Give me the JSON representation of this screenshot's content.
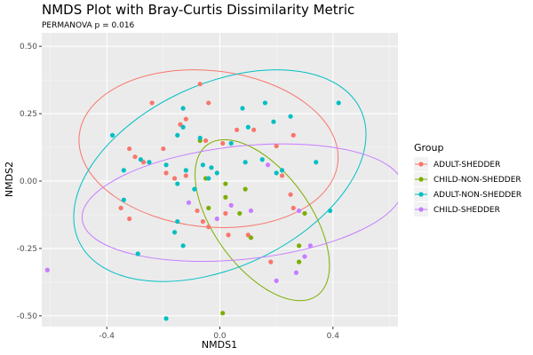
{
  "chart_data": {
    "type": "scatter",
    "title": "NMDS Plot with Bray-Curtis Dissimilarity Metric",
    "subtitle": "PERMANOVA p = 0.016",
    "xlabel": "NMDS1",
    "ylabel": "NMDS2",
    "xlim": [
      -0.63,
      0.63
    ],
    "ylim": [
      -0.54,
      0.55
    ],
    "x_ticks": [
      -0.4,
      0.0,
      0.4
    ],
    "x_tick_labels": [
      "-0.4",
      "0.0",
      "0.4"
    ],
    "y_ticks": [
      -0.5,
      -0.25,
      0.0,
      0.25,
      0.5
    ],
    "y_tick_labels": [
      "-0.50",
      "-0.25",
      "0.00",
      "0.25",
      "0.50"
    ],
    "legend_title": "Group",
    "legend_position": "right",
    "series": [
      {
        "name": "ADULT-SHEDDER",
        "color": "#F8766D",
        "points": [
          [
            -0.24,
            0.29
          ],
          [
            -0.07,
            0.36
          ],
          [
            -0.04,
            0.29
          ],
          [
            -0.12,
            0.23
          ],
          [
            -0.14,
            0.21
          ],
          [
            -0.32,
            0.12
          ],
          [
            -0.3,
            0.09
          ],
          [
            -0.27,
            0.07
          ],
          [
            -0.2,
            0.12
          ],
          [
            -0.19,
            0.03
          ],
          [
            -0.16,
            0.01
          ],
          [
            -0.12,
            0.02
          ],
          [
            -0.05,
            0.15
          ],
          [
            0.01,
            0.14
          ],
          [
            0.06,
            0.19
          ],
          [
            0.12,
            0.19
          ],
          [
            0.26,
            0.17
          ],
          [
            0.2,
            0.13
          ],
          [
            0.22,
            0.02
          ],
          [
            0.25,
            -0.05
          ],
          [
            0.26,
            -0.1
          ],
          [
            0.02,
            -0.12
          ],
          [
            -0.06,
            -0.15
          ],
          [
            -0.04,
            -0.17
          ],
          [
            -0.08,
            -0.11
          ],
          [
            -0.35,
            -0.1
          ],
          [
            -0.32,
            -0.14
          ],
          [
            0.03,
            -0.2
          ],
          [
            0.1,
            -0.2
          ],
          [
            0.18,
            -0.3
          ]
        ]
      },
      {
        "name": "CHILD-NON-SHEDDER",
        "color": "#7CAE00",
        "points": [
          [
            -0.07,
            0.15
          ],
          [
            -0.05,
            0.01
          ],
          [
            0.02,
            -0.01
          ],
          [
            0.02,
            -0.06
          ],
          [
            0.09,
            -0.03
          ],
          [
            -0.04,
            -0.1
          ],
          [
            0.07,
            -0.12
          ],
          [
            0.11,
            -0.21
          ],
          [
            0.3,
            -0.12
          ],
          [
            0.28,
            -0.24
          ],
          [
            0.28,
            -0.3
          ],
          [
            0.01,
            -0.49
          ]
        ]
      },
      {
        "name": "ADULT-NON-SHEDDER",
        "color": "#00BFC4",
        "points": [
          [
            -0.13,
            0.27
          ],
          [
            0.16,
            0.29
          ],
          [
            0.08,
            0.27
          ],
          [
            0.42,
            0.29
          ],
          [
            0.19,
            0.22
          ],
          [
            0.25,
            0.24
          ],
          [
            0.1,
            0.2
          ],
          [
            -0.13,
            0.2
          ],
          [
            -0.15,
            0.17
          ],
          [
            -0.38,
            0.17
          ],
          [
            -0.07,
            0.16
          ],
          [
            0.04,
            0.14
          ],
          [
            -0.06,
            0.06
          ],
          [
            -0.03,
            0.05
          ],
          [
            0.15,
            0.08
          ],
          [
            0.09,
            0.07
          ],
          [
            0.22,
            0.04
          ],
          [
            0.2,
            0.03
          ],
          [
            0.34,
            0.07
          ],
          [
            -0.01,
            0.03
          ],
          [
            -0.12,
            0.04
          ],
          [
            -0.04,
            0.01
          ],
          [
            -0.19,
            0.06
          ],
          [
            -0.15,
            -0.01
          ],
          [
            -0.09,
            -0.03
          ],
          [
            -0.25,
            0.07
          ],
          [
            -0.28,
            0.08
          ],
          [
            -0.34,
            0.04
          ],
          [
            -0.34,
            -0.07
          ],
          [
            -0.15,
            -0.15
          ],
          [
            -0.16,
            -0.19
          ],
          [
            -0.13,
            -0.24
          ],
          [
            -0.29,
            -0.27
          ],
          [
            0.39,
            -0.11
          ],
          [
            -0.19,
            -0.51
          ]
        ]
      },
      {
        "name": "CHILD-SHEDDER",
        "color": "#C77CFF",
        "points": [
          [
            0.17,
            0.06
          ],
          [
            -0.11,
            -0.08
          ],
          [
            0.04,
            -0.09
          ],
          [
            0.11,
            -0.11
          ],
          [
            0.28,
            -0.11
          ],
          [
            -0.01,
            -0.14
          ],
          [
            0.32,
            -0.24
          ],
          [
            0.3,
            -0.28
          ],
          [
            0.27,
            -0.34
          ],
          [
            0.2,
            -0.37
          ],
          [
            -0.61,
            -0.33
          ]
        ]
      }
    ],
    "ellipses": [
      {
        "name": "ADULT-SHEDDER",
        "cx": -0.04,
        "cy": 0.12,
        "rx": 0.46,
        "ry": 0.29,
        "angle_deg": -6
      },
      {
        "name": "CHILD-NON-SHEDDER",
        "cx": 0.15,
        "cy": -0.145,
        "rx": 0.33,
        "ry": 0.178,
        "angle_deg": -54
      },
      {
        "name": "ADULT-NON-SHEDDER",
        "cx": 0.0,
        "cy": 0.02,
        "rx": 0.55,
        "ry": 0.34,
        "angle_deg": 25
      },
      {
        "name": "CHILD-SHEDDER",
        "cx": 0.08,
        "cy": -0.08,
        "rx": 0.57,
        "ry": 0.21,
        "angle_deg": 6
      }
    ]
  }
}
